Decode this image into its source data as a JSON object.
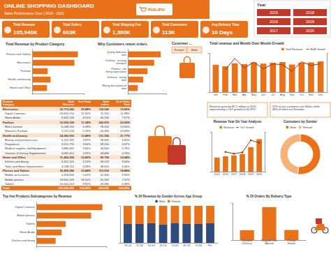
{
  "header": {
    "title": "ONLINE SHOPPING DASHBOARD",
    "subtitle": "Sales Performance Over | 2015 - 2020",
    "brand": "PHILIPO"
  },
  "year_slicer": {
    "title": "Year",
    "items": [
      "2015",
      "2016",
      "2017",
      "2018",
      "2019",
      "2020"
    ]
  },
  "customer_slicer": {
    "title": "Customer ...",
    "items": [
      "Female",
      "Male"
    ]
  },
  "kpis": [
    {
      "label": "Total Revenue",
      "value": "105,946K"
    },
    {
      "label": "Total Orders",
      "value": "603K"
    },
    {
      "label": "Total Shipping Fee",
      "value": "1,300K"
    },
    {
      "label": "Total Customers",
      "value": "113K"
    },
    {
      "label": "Avg Delivery Time",
      "value": "10 Days"
    }
  ],
  "notes": [
    "Revenue grew by $7.1 million in 2020 representing a YoY growth of 32.99%",
    "52% of our customers are Males while 48% of them are Females"
  ],
  "table": {
    "columns": [
      "Product Category",
      "Total Revenue",
      "% of Total",
      "Total orders",
      "% of Order Total"
    ],
    "groups": [
      {
        "row": [
          "Electronics",
          "32,713,243",
          "30.88%",
          "118,540",
          "19.66%"
        ],
        "items": [
          [
            "Digital Cameras",
            "23,650,710",
            "22.32%",
            "72,310",
            "11.99%"
          ],
          [
            "Home Audio",
            "9,062,533",
            "8.55%",
            "46,230",
            "7.67%"
          ]
        ]
      },
      {
        "row": [
          "Fashion",
          "12,059,336",
          "11.38%",
          "142,870",
          "23.69%"
        ],
        "items": [
          [
            "Men's fashion",
            "6,548,210",
            "6.18%",
            "78,410",
            "13.00%"
          ],
          [
            "Women's Fashion",
            "5,511,126",
            "5.20%",
            "64,460",
            "10.69%"
          ]
        ]
      },
      {
        "row": [
          "Health and beauty",
          "14,283,915",
          "13.48%",
          "131,250",
          "21.77%"
        ],
        "items": [
          [
            "Beauty and personal care",
            "4,102,331",
            "3.87%",
            "39,820",
            "6.60%"
          ],
          [
            "Fragrances",
            "3,215,770",
            "3.04%",
            "28,150",
            "4.67%"
          ],
          [
            "Medical supplies and Equipment",
            "3,880,402",
            "3.66%",
            "34,600",
            "5.74%"
          ],
          [
            "Vitamins & Dietary Supplements",
            "3,085,412",
            "2.91%",
            "28,680",
            "4.76%"
          ]
        ]
      },
      {
        "row": [
          "Home and Office",
          "11,460,220",
          "10.82%",
          "96,730",
          "16.04%"
        ],
        "items": [
          [
            "Kitchen and dining",
            "6,922,105",
            "6.53%",
            "58,120",
            "9.64%"
          ],
          [
            "Tools and Home Improvement",
            "4,538,115",
            "4.28%",
            "38,610",
            "6.40%"
          ]
        ]
      },
      {
        "row": [
          "Phones and Tablets",
          "35,429,286",
          "33.44%",
          "113,610",
          "18.84%"
        ],
        "items": [
          [
            "Mobile accessories",
            "5,318,640",
            "5.02%",
            "41,900",
            "6.95%"
          ],
          [
            "Mobile phones",
            "19,605,233",
            "18.50%",
            "45,320",
            "7.52%"
          ],
          [
            "Tablets",
            "10,505,413",
            "9.92%",
            "26,390",
            "4.38%"
          ]
        ]
      }
    ],
    "total": [
      "Total",
      "105,946,000",
      "100.00%",
      "603,000",
      "100.00%"
    ]
  },
  "chart_data": [
    {
      "type": "bar",
      "title": "Total Revenue by Product Category",
      "orientation": "horizontal",
      "categories": [
        "Phones and Tablets",
        "Electronics",
        "Fashion",
        "Health and beauty",
        "Home and Office"
      ],
      "values": [
        35.43,
        32.71,
        12.06,
        14.28,
        11.46
      ],
      "color": "#e8711a",
      "xlim": [
        0,
        40
      ],
      "tick_labels": "y"
    },
    {
      "type": "bar",
      "title": "Why Customers return orders",
      "orientation": "horizontal",
      "categories": [
        "Quality defective item",
        "Delivery - missing item/part",
        "Product - not fitting expectation",
        "Delivery - wrong item",
        "Wrong description of item"
      ],
      "values": [
        30,
        24,
        18,
        14,
        9
      ],
      "color": "#e8711a",
      "xlim": [
        0,
        35
      ],
      "tick_labels": "y"
    },
    {
      "type": "bar",
      "title": "Total revenue and Month Over Month Growth",
      "categories": [
        "Jan",
        "Feb",
        "Mar",
        "Apr",
        "May",
        "Jun",
        "Jul",
        "Aug",
        "Sep",
        "Oct",
        "Nov",
        "Dec"
      ],
      "series": [
        {
          "name": "Total Revenue",
          "type": "bar",
          "color": "#e8711a",
          "values": [
            8.41,
            7.92,
            8.85,
            8.6,
            9.12,
            8.74,
            9.01,
            9.22,
            8.48,
            9.03,
            9.12,
            9.44
          ]
        },
        {
          "name": "MoM Growth",
          "type": "line",
          "color": "#8b3a0f",
          "axis": "y2",
          "values": [
            null,
            -5.83,
            11.74,
            -2.82,
            6.05,
            -4.17,
            3.09,
            2.33,
            -8.03,
            6.49,
            1.0,
            3.51
          ]
        }
      ],
      "ylim": [
        0,
        12
      ],
      "y2lim": [
        -40,
        20
      ],
      "tick_labels": "x",
      "legend": "top-right"
    },
    {
      "type": "bar",
      "title": "Revenue Year On Year Analysis",
      "categories": [
        "2015",
        "2016",
        "2017",
        "2018",
        "2019",
        "2020"
      ],
      "series": [
        {
          "name": "Revenue",
          "type": "bar",
          "color": "#e8711a",
          "values": [
            12.4,
            13.6,
            14.3,
            15.5,
            21.52,
            28.626
          ]
        },
        {
          "name": "YoY Growth",
          "type": "line",
          "color": "#8b3a0f",
          "axis": "y2",
          "marker": "circle",
          "values": [
            null,
            9.68,
            5.15,
            8.39,
            38.84,
            32.99
          ]
        }
      ],
      "ylim": [
        0,
        35
      ],
      "y2lim": [
        -40,
        60
      ],
      "tick_labels": "x",
      "legend": "top"
    },
    {
      "type": "pie",
      "title": "Customers by Gender",
      "categories": [
        "Male",
        "Female"
      ],
      "values": [
        52,
        48
      ],
      "colors": [
        "#e8711a",
        "#f5b27a"
      ],
      "legend": "top"
    },
    {
      "type": "bar",
      "title": "Top five Products Subcategories by Revenue",
      "orientation": "horizontal",
      "categories": [
        "Digital Cameras",
        "Mobile phones",
        "Tablets",
        "Home Audio",
        "Kitchen and dining"
      ],
      "values": [
        23.65,
        19.61,
        10.51,
        9.06,
        6.92
      ],
      "color": "#e8711a",
      "xlim": [
        0,
        25
      ],
      "tick_labels": "y"
    },
    {
      "type": "bar",
      "title": "% Of Revenue by Gender Across Age Group",
      "categories": [
        "18-24",
        "25-34",
        "35-44",
        "45-54",
        "55-64",
        "65-74",
        "75-84",
        "85+"
      ],
      "series": [
        {
          "name": "Male",
          "color": "#2f4b7c",
          "values": [
            52,
            51,
            53,
            50,
            54,
            52,
            51,
            53
          ]
        },
        {
          "name": "Female",
          "color": "#e8711a",
          "values": [
            48,
            49,
            47,
            50,
            46,
            48,
            49,
            47
          ]
        }
      ],
      "stacked": true,
      "ylim": [
        0,
        100
      ],
      "tick_labels": "x",
      "legend": "top"
    },
    {
      "type": "bar",
      "title": "% Of Orders By Delivery Type",
      "categories": [
        "Standard Delivery",
        "Shipped from Abroad",
        "Pickup Station"
      ],
      "values": [
        18.6,
        62.3,
        19.1
      ],
      "color": "#e8711a",
      "ylim": [
        0,
        70
      ],
      "tick_labels": "x"
    }
  ]
}
